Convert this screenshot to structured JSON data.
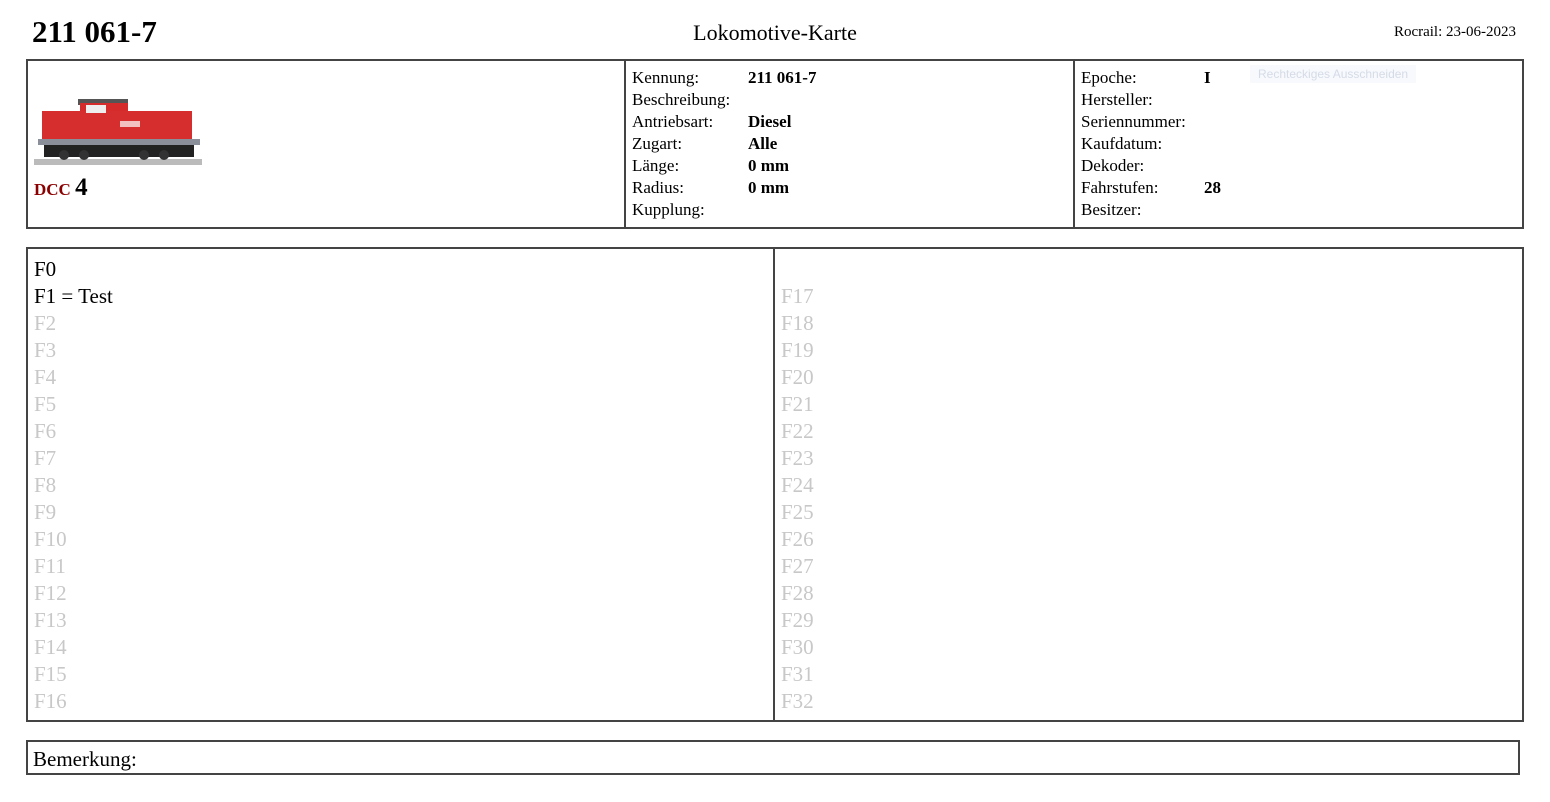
{
  "header": {
    "title": "211 061-7",
    "card_title": "Lokomotive-Karte",
    "rocrail": "Rocrail: 23-06-2023"
  },
  "loco": {
    "protocol": "DCC",
    "address": "4",
    "image": "red-diesel-locomotive-photo"
  },
  "info_mid": [
    {
      "label": "Kennung:",
      "value": "211 061-7"
    },
    {
      "label": "Beschreibung:",
      "value": ""
    },
    {
      "label": "Antriebsart:",
      "value": "Diesel"
    },
    {
      "label": "Zugart:",
      "value": "Alle"
    },
    {
      "label": "Länge:",
      "value": "0 mm"
    },
    {
      "label": "Radius:",
      "value": "0 mm"
    },
    {
      "label": "Kupplung:",
      "value": ""
    }
  ],
  "info_right": [
    {
      "label": "Epoche:",
      "value": "I"
    },
    {
      "label": "Hersteller:",
      "value": ""
    },
    {
      "label": "Seriennummer:",
      "value": ""
    },
    {
      "label": "Kaufdatum:",
      "value": ""
    },
    {
      "label": "Dekoder:",
      "value": ""
    },
    {
      "label": "Fahrstufen:",
      "value": "28"
    },
    {
      "label": "Besitzer:",
      "value": ""
    }
  ],
  "tooltip": "Rechteckiges Ausschneiden",
  "functions_left": [
    {
      "t": "F0",
      "on": true
    },
    {
      "t": "F1 = Test",
      "on": true
    },
    {
      "t": "F2"
    },
    {
      "t": "F3"
    },
    {
      "t": "F4"
    },
    {
      "t": "F5"
    },
    {
      "t": "F6"
    },
    {
      "t": "F7"
    },
    {
      "t": "F8"
    },
    {
      "t": "F9"
    },
    {
      "t": "F10"
    },
    {
      "t": "F11"
    },
    {
      "t": "F12"
    },
    {
      "t": "F13"
    },
    {
      "t": "F14"
    },
    {
      "t": "F15"
    },
    {
      "t": "F16"
    }
  ],
  "functions_right": [
    {
      "t": ""
    },
    {
      "t": "F17"
    },
    {
      "t": "F18"
    },
    {
      "t": "F19"
    },
    {
      "t": "F20"
    },
    {
      "t": "F21"
    },
    {
      "t": "F22"
    },
    {
      "t": "F23"
    },
    {
      "t": "F24"
    },
    {
      "t": "F25"
    },
    {
      "t": "F26"
    },
    {
      "t": "F27"
    },
    {
      "t": "F28"
    },
    {
      "t": "F29"
    },
    {
      "t": "F30"
    },
    {
      "t": "F31"
    },
    {
      "t": "F32"
    }
  ],
  "remarks": {
    "label": "Bemerkung:"
  }
}
